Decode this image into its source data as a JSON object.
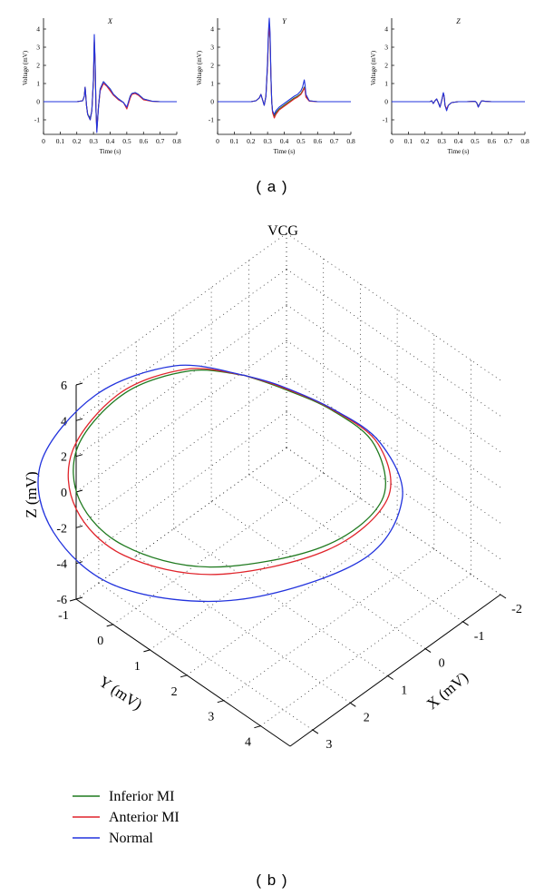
{
  "figure": {
    "label_a": "( a )",
    "label_b": "( b )"
  },
  "colors": {
    "inferior": "#1f7a1f",
    "anterior": "#e0242b",
    "normal": "#2233dd",
    "axis": "#000000"
  },
  "chart_data": [
    {
      "type": "line",
      "panel": "X",
      "title": "X",
      "xlabel": "Time (s)",
      "ylabel": "Voltage (mV)",
      "xlim": [
        0,
        0.8
      ],
      "ylim": [
        -1.8,
        4.6
      ],
      "xticks": [
        "0",
        "0.1",
        "0.2",
        "0.3",
        "0.4",
        "0.5",
        "0.6",
        "0.7",
        "0.8"
      ],
      "yticks": [
        "-1",
        "0",
        "1",
        "2",
        "3",
        "4"
      ],
      "x": [
        0,
        0.2,
        0.235,
        0.245,
        0.25,
        0.258,
        0.265,
        0.28,
        0.29,
        0.3,
        0.305,
        0.31,
        0.315,
        0.32,
        0.33,
        0.34,
        0.36,
        0.38,
        0.4,
        0.42,
        0.45,
        0.48,
        0.5,
        0.52,
        0.53,
        0.55,
        0.57,
        0.6,
        0.65,
        0.7,
        0.8
      ],
      "series": [
        {
          "name": "Inferior MI",
          "values": [
            0,
            0,
            0.05,
            0.3,
            0.8,
            -0.2,
            -0.7,
            -0.9,
            -0.5,
            1.2,
            3.3,
            2,
            -0.5,
            -1.5,
            -0.3,
            0.7,
            1.1,
            0.9,
            0.7,
            0.4,
            0.15,
            -0.05,
            -0.35,
            0.3,
            0.45,
            0.5,
            0.4,
            0.15,
            0.03,
            0,
            0
          ]
        },
        {
          "name": "Anterior MI",
          "values": [
            0,
            0,
            0.05,
            0.3,
            0.8,
            -0.2,
            -0.7,
            -1,
            -0.5,
            1.2,
            3.4,
            2,
            -0.5,
            -1.6,
            -0.3,
            0.6,
            1,
            0.85,
            0.6,
            0.35,
            0.1,
            -0.05,
            -0.4,
            0.2,
            0.4,
            0.45,
            0.35,
            0.1,
            0.02,
            0,
            0
          ]
        },
        {
          "name": "Normal",
          "values": [
            0,
            0,
            0.05,
            0.3,
            0.8,
            -0.2,
            -0.7,
            -1,
            -0.5,
            1.3,
            3.7,
            2.1,
            -0.5,
            -1.7,
            -0.3,
            0.7,
            1.1,
            0.9,
            0.7,
            0.4,
            0.15,
            -0.05,
            -0.3,
            0.3,
            0.45,
            0.5,
            0.4,
            0.15,
            0.03,
            0,
            0
          ]
        }
      ]
    },
    {
      "type": "line",
      "panel": "Y",
      "title": "Y",
      "xlabel": "Time (s)",
      "ylabel": "Voltage (mV)",
      "xlim": [
        0,
        0.8
      ],
      "ylim": [
        -1.8,
        4.6
      ],
      "xticks": [
        "0",
        "0.1",
        "0.2",
        "0.3",
        "0.4",
        "0.5",
        "0.6",
        "0.7",
        "0.8"
      ],
      "yticks": [
        "-1",
        "0",
        "1",
        "2",
        "3",
        "4"
      ],
      "x": [
        0,
        0.2,
        0.23,
        0.25,
        0.26,
        0.27,
        0.28,
        0.29,
        0.3,
        0.305,
        0.31,
        0.315,
        0.32,
        0.325,
        0.33,
        0.34,
        0.35,
        0.37,
        0.4,
        0.43,
        0.46,
        0.48,
        0.5,
        0.51,
        0.52,
        0.525,
        0.53,
        0.55,
        0.6,
        0.7,
        0.8
      ],
      "series": [
        {
          "name": "Inferior MI",
          "values": [
            0,
            0,
            0.05,
            0.2,
            0.4,
            0.1,
            -0.2,
            0.3,
            2,
            3.5,
            4.1,
            3.5,
            1.4,
            0,
            -0.55,
            -0.8,
            -0.6,
            -0.4,
            -0.2,
            0,
            0.2,
            0.3,
            0.45,
            0.6,
            0.8,
            0.7,
            0.3,
            0.05,
            0,
            0,
            0
          ]
        },
        {
          "name": "Anterior MI",
          "values": [
            0,
            0,
            0.05,
            0.2,
            0.4,
            0.1,
            -0.2,
            0.3,
            2,
            3.5,
            4.1,
            3.5,
            1.4,
            0,
            -0.6,
            -0.9,
            -0.7,
            -0.45,
            -0.25,
            -0.05,
            0.15,
            0.25,
            0.4,
            0.55,
            0.75,
            0.6,
            0.25,
            0.03,
            0,
            0,
            0
          ]
        },
        {
          "name": "Normal",
          "values": [
            0,
            0,
            0.05,
            0.2,
            0.4,
            0.1,
            -0.2,
            0.3,
            2.2,
            3.8,
            4.6,
            3.8,
            1.5,
            0,
            -0.5,
            -0.7,
            -0.5,
            -0.3,
            -0.1,
            0.1,
            0.3,
            0.4,
            0.6,
            0.8,
            1.2,
            0.9,
            0.4,
            0.05,
            0,
            0,
            0
          ]
        }
      ]
    },
    {
      "type": "line",
      "panel": "Z",
      "title": "Z",
      "xlabel": "Time (s)",
      "ylabel": "Voltage (mV)",
      "xlim": [
        0,
        0.8
      ],
      "ylim": [
        -1.8,
        4.6
      ],
      "xticks": [
        "0",
        "0.1",
        "0.2",
        "0.3",
        "0.4",
        "0.5",
        "0.6",
        "0.7",
        "0.8"
      ],
      "yticks": [
        "-1",
        "0",
        "1",
        "2",
        "3",
        "4"
      ],
      "x": [
        0,
        0.2,
        0.23,
        0.24,
        0.25,
        0.26,
        0.27,
        0.28,
        0.29,
        0.3,
        0.31,
        0.315,
        0.32,
        0.33,
        0.34,
        0.36,
        0.4,
        0.45,
        0.5,
        0.51,
        0.52,
        0.53,
        0.54,
        0.56,
        0.6,
        0.7,
        0.8
      ],
      "series": [
        {
          "name": "Inferior MI",
          "values": [
            0,
            0,
            0,
            0.05,
            -0.1,
            0.05,
            0.15,
            -0.05,
            -0.3,
            0.05,
            0.45,
            0.3,
            -0.2,
            -0.45,
            -0.2,
            -0.05,
            0,
            0,
            0.02,
            -0.05,
            -0.25,
            -0.1,
            0.05,
            0.02,
            0,
            0,
            0
          ]
        },
        {
          "name": "Anterior MI",
          "values": [
            0,
            0,
            0,
            0.05,
            -0.1,
            0.05,
            0.15,
            -0.05,
            -0.3,
            0.05,
            0.45,
            0.3,
            -0.2,
            -0.4,
            -0.2,
            -0.05,
            0,
            0,
            0.02,
            -0.05,
            -0.3,
            -0.1,
            0.05,
            0.02,
            0,
            0,
            0
          ]
        },
        {
          "name": "Normal",
          "values": [
            0,
            0,
            0,
            0.05,
            -0.1,
            0.05,
            0.15,
            -0.05,
            -0.3,
            0.05,
            0.5,
            0.3,
            -0.2,
            -0.5,
            -0.2,
            -0.05,
            0,
            0,
            0.02,
            -0.05,
            -0.3,
            -0.1,
            0.05,
            0.02,
            0,
            0,
            0
          ]
        }
      ]
    },
    {
      "type": "line3d",
      "panel": "VCG",
      "title": "VCG",
      "xlabel": "X (mV)",
      "ylabel": "Y (mV)",
      "zlabel": "Z (mV)",
      "xlim": [
        -2,
        3.6
      ],
      "ylim": [
        -1,
        4.8
      ],
      "zlim": [
        -6,
        6
      ],
      "xticks": [
        3,
        2,
        1,
        0,
        -1,
        -2
      ],
      "yticks": [
        -1,
        0,
        1,
        2,
        3,
        4
      ],
      "zticks": [
        -6,
        -4,
        -2,
        0,
        2,
        4,
        6
      ],
      "legend": [
        "Inferior MI",
        "Anterior MI",
        "Normal"
      ],
      "legend_position": "bottom-left",
      "series": [
        {
          "name": "Inferior MI",
          "points": [
            [
              0.05,
              -0.05,
              2.5
            ],
            [
              0.8,
              -0.75,
              2.9
            ],
            [
              2,
              -1.3,
              2.7
            ],
            [
              3.2,
              -1.35,
              1.5
            ],
            [
              3.65,
              -0.85,
              -0.2
            ],
            [
              3.35,
              0.05,
              -1.9
            ],
            [
              2.2,
              1.2,
              -3.2
            ],
            [
              0.3,
              2.3,
              -3.4
            ],
            [
              -0.95,
              2.65,
              -2.2
            ],
            [
              -1.3,
              2.1,
              -0.4
            ],
            [
              -0.9,
              1.35,
              1.1
            ],
            [
              -0.3,
              0.55,
              2.15
            ],
            [
              0.05,
              -0.05,
              2.5
            ]
          ]
        },
        {
          "name": "Anterior MI",
          "points": [
            [
              0.05,
              -0.05,
              2.5
            ],
            [
              0.85,
              -0.8,
              3
            ],
            [
              2.1,
              -1.35,
              2.75
            ],
            [
              3.35,
              -1.35,
              1.45
            ],
            [
              3.8,
              -0.8,
              -0.35
            ],
            [
              3.45,
              0.15,
              -2.15
            ],
            [
              2.2,
              1.35,
              -3.4
            ],
            [
              0.25,
              2.4,
              -3.5
            ],
            [
              -1.05,
              2.7,
              -2.2
            ],
            [
              -1.35,
              2.15,
              -0.35
            ],
            [
              -0.9,
              1.35,
              1.15
            ],
            [
              -0.3,
              0.55,
              2.2
            ],
            [
              0.05,
              -0.05,
              2.5
            ]
          ]
        },
        {
          "name": "Normal",
          "points": [
            [
              0.05,
              -0.05,
              2.5
            ],
            [
              1,
              -0.95,
              3.2
            ],
            [
              2.5,
              -1.6,
              2.9
            ],
            [
              3.95,
              -1.6,
              1.3
            ],
            [
              4.35,
              -0.85,
              -0.9
            ],
            [
              3.9,
              0.45,
              -2.8
            ],
            [
              2.2,
              1.9,
              -4.05
            ],
            [
              -0.1,
              2.95,
              -3.85
            ],
            [
              -1.25,
              2.9,
              -2.2
            ],
            [
              -1.35,
              2.2,
              -0.2
            ],
            [
              -0.9,
              1.4,
              1.2
            ],
            [
              -0.3,
              0.55,
              2.25
            ],
            [
              0.05,
              -0.05,
              2.5
            ]
          ]
        }
      ]
    }
  ]
}
